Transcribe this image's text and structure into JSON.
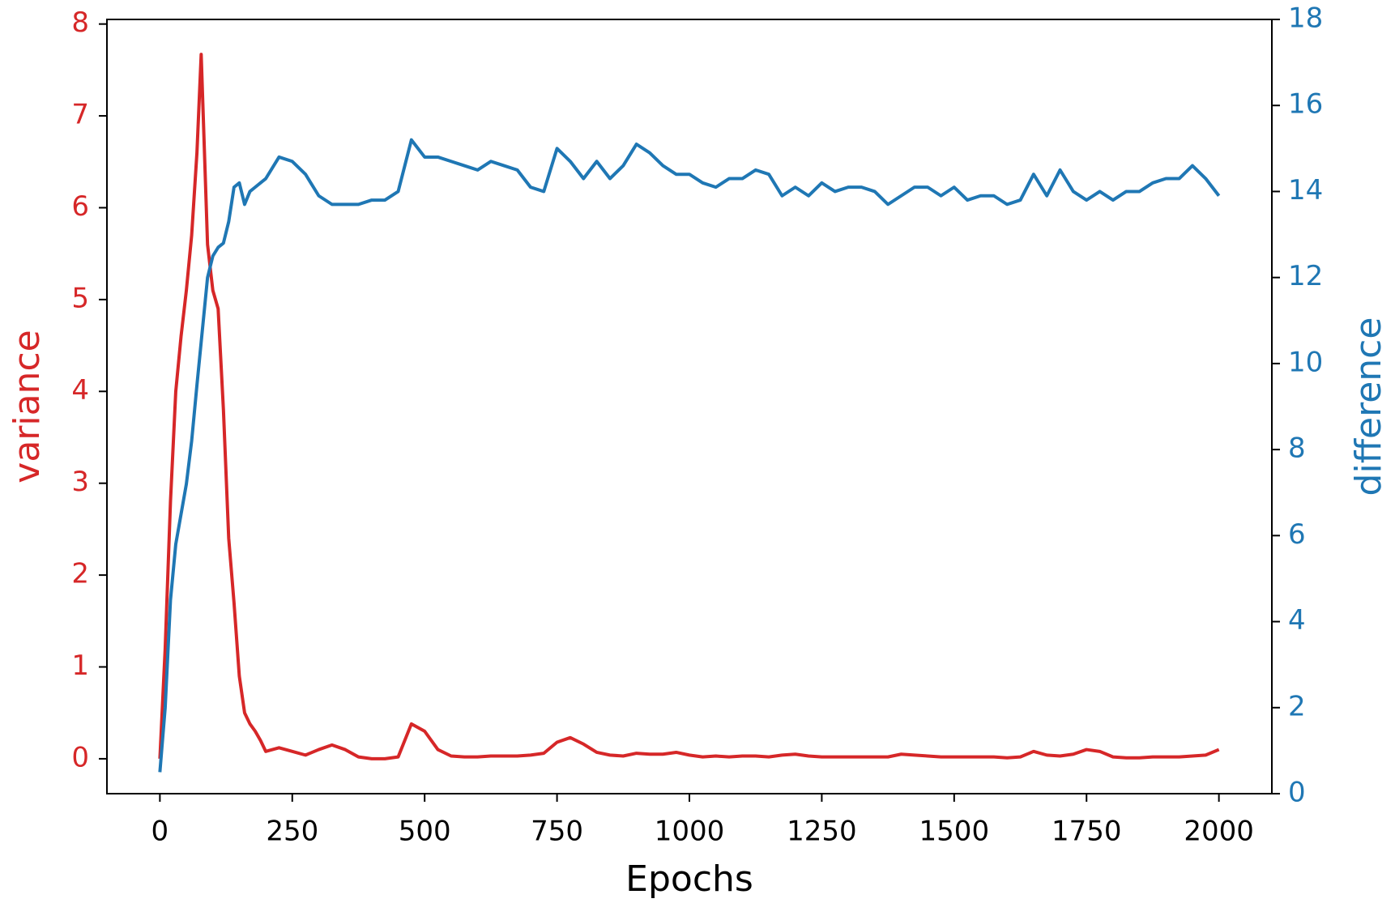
{
  "chart_data": {
    "type": "line",
    "xlabel": "Epochs",
    "ylabel": "variance",
    "y2label": "difference",
    "x": [
      0,
      10,
      20,
      30,
      40,
      50,
      60,
      70,
      78,
      90,
      100,
      110,
      120,
      130,
      140,
      150,
      160,
      170,
      180,
      190,
      200,
      225,
      250,
      275,
      300,
      325,
      350,
      375,
      400,
      425,
      450,
      475,
      500,
      525,
      550,
      575,
      600,
      625,
      650,
      675,
      700,
      725,
      750,
      775,
      800,
      825,
      850,
      875,
      900,
      925,
      950,
      975,
      1000,
      1025,
      1050,
      1075,
      1100,
      1125,
      1150,
      1175,
      1200,
      1225,
      1250,
      1275,
      1300,
      1325,
      1350,
      1375,
      1400,
      1425,
      1450,
      1475,
      1500,
      1525,
      1550,
      1575,
      1600,
      1625,
      1650,
      1675,
      1700,
      1725,
      1750,
      1775,
      1800,
      1825,
      1850,
      1875,
      1900,
      1925,
      1950,
      1975,
      2000
    ],
    "series": [
      {
        "name": "variance",
        "color": "#d62728",
        "axis": "y",
        "values": [
          0,
          1.2,
          2.8,
          4.0,
          4.6,
          5.1,
          5.7,
          6.6,
          7.67,
          5.6,
          5.1,
          4.9,
          3.8,
          2.4,
          1.7,
          0.9,
          0.5,
          0.38,
          0.3,
          0.2,
          0.08,
          0.12,
          0.08,
          0.04,
          0.1,
          0.15,
          0.1,
          0.02,
          0,
          0,
          0.02,
          0.38,
          0.3,
          0.1,
          0.03,
          0.02,
          0.02,
          0.03,
          0.03,
          0.03,
          0.04,
          0.06,
          0.18,
          0.23,
          0.16,
          0.07,
          0.04,
          0.03,
          0.06,
          0.05,
          0.05,
          0.07,
          0.04,
          0.02,
          0.03,
          0.02,
          0.03,
          0.03,
          0.02,
          0.04,
          0.05,
          0.03,
          0.02,
          0.02,
          0.02,
          0.02,
          0.02,
          0.02,
          0.05,
          0.04,
          0.03,
          0.02,
          0.02,
          0.02,
          0.02,
          0.02,
          0.01,
          0.02,
          0.08,
          0.04,
          0.03,
          0.05,
          0.1,
          0.08,
          0.02,
          0.01,
          0.01,
          0.02,
          0.02,
          0.02,
          0.03,
          0.04,
          0.1
        ]
      },
      {
        "name": "difference",
        "color": "#1f77b4",
        "axis": "y2",
        "values": [
          0.5,
          2.0,
          4.5,
          5.8,
          6.5,
          7.2,
          8.2,
          9.5,
          10.5,
          12.0,
          12.5,
          12.7,
          12.8,
          13.3,
          14.1,
          14.2,
          13.7,
          14.0,
          14.1,
          14.2,
          14.3,
          14.8,
          14.7,
          14.4,
          13.9,
          13.7,
          13.7,
          13.7,
          13.8,
          13.8,
          14.0,
          15.2,
          14.8,
          14.8,
          14.7,
          14.6,
          14.5,
          14.7,
          14.6,
          14.5,
          14.1,
          14.0,
          15.0,
          14.7,
          14.3,
          14.7,
          14.3,
          14.6,
          15.1,
          14.9,
          14.6,
          14.4,
          14.4,
          14.2,
          14.1,
          14.3,
          14.3,
          14.5,
          14.4,
          13.9,
          14.1,
          13.9,
          14.2,
          14.0,
          14.1,
          14.1,
          14.0,
          13.7,
          13.9,
          14.1,
          14.1,
          13.9,
          14.1,
          13.8,
          13.9,
          13.9,
          13.7,
          13.8,
          14.4,
          13.9,
          14.5,
          14.0,
          13.8,
          14.0,
          13.8,
          14.0,
          14.0,
          14.2,
          14.3,
          14.3,
          14.6,
          14.3,
          13.9
        ]
      }
    ],
    "xlim": [
      -100,
      2100
    ],
    "xticks": [
      0,
      250,
      500,
      750,
      1000,
      1250,
      1500,
      1750,
      2000
    ],
    "ylim": [
      -0.38,
      8.05
    ],
    "yticks": [
      0,
      1,
      2,
      3,
      4,
      5,
      6,
      7,
      8
    ],
    "y2lim": [
      0,
      18
    ],
    "y2ticks": [
      0,
      2,
      4,
      6,
      8,
      10,
      12,
      14,
      16,
      18
    ]
  }
}
